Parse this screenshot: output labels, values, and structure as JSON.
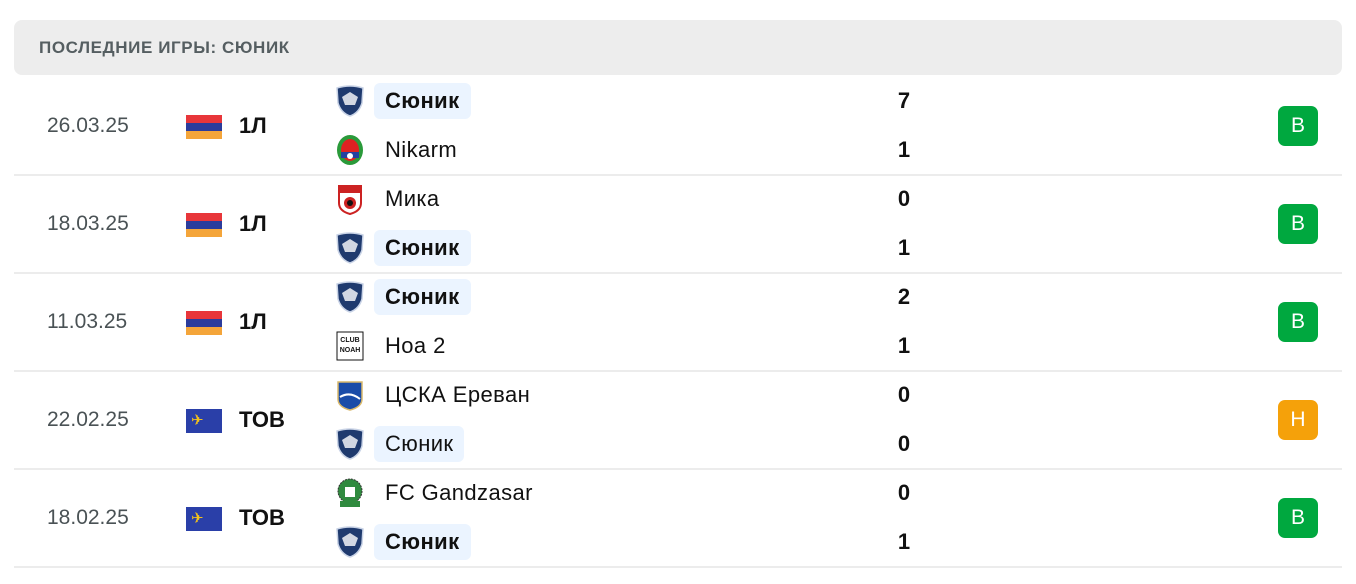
{
  "header": {
    "title": "ПОСЛЕДНИЕ ИГРЫ: СЮНИК"
  },
  "colors": {
    "win": "#00a83f",
    "draw": "#f5a10a",
    "highlight": "#ebf4ff"
  },
  "matches": [
    {
      "date": "26.03.25",
      "flag": "armenia-flag",
      "league": "1Л",
      "teams": [
        {
          "name": "Сюник",
          "logo": "syunik-logo",
          "score": "7",
          "highlight": true,
          "bold": true
        },
        {
          "name": "Nikarm",
          "logo": "nikarm-logo",
          "score": "1"
        }
      ],
      "result": "В",
      "result_type": "win"
    },
    {
      "date": "18.03.25",
      "flag": "armenia-flag",
      "league": "1Л",
      "teams": [
        {
          "name": "Мика",
          "logo": "mika-logo",
          "score": "0"
        },
        {
          "name": "Сюник",
          "logo": "syunik-logo",
          "score": "1",
          "highlight": true,
          "bold": true
        }
      ],
      "result": "В",
      "result_type": "win"
    },
    {
      "date": "11.03.25",
      "flag": "armenia-flag",
      "league": "1Л",
      "teams": [
        {
          "name": "Сюник",
          "logo": "syunik-logo",
          "score": "2",
          "highlight": true,
          "bold": true
        },
        {
          "name": "Ноа 2",
          "logo": "noah-logo",
          "score": "1"
        }
      ],
      "result": "В",
      "result_type": "win"
    },
    {
      "date": "22.02.25",
      "flag": "world-flag",
      "league": "ТОВ",
      "teams": [
        {
          "name": "ЦСКА Ереван",
          "logo": "cska-logo",
          "score": "0"
        },
        {
          "name": "Сюник",
          "logo": "syunik-logo",
          "score": "0",
          "highlight": true,
          "bold": false
        }
      ],
      "result": "Н",
      "result_type": "draw"
    },
    {
      "date": "18.02.25",
      "flag": "world-flag",
      "league": "ТОВ",
      "teams": [
        {
          "name": "FC Gandzasar",
          "logo": "gandzasar-logo",
          "score": "0"
        },
        {
          "name": "Сюник",
          "logo": "syunik-logo",
          "score": "1",
          "highlight": true,
          "bold": true
        }
      ],
      "result": "В",
      "result_type": "win"
    }
  ]
}
